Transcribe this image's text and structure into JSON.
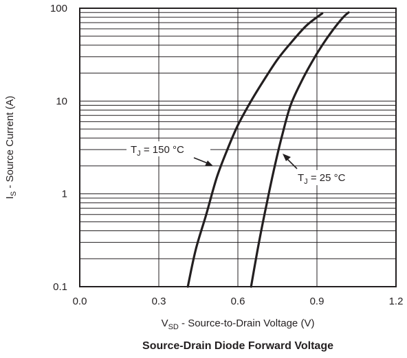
{
  "chart_data": {
    "type": "line",
    "title": "Source-Drain Diode Forward Voltage",
    "xlabel": {
      "main": "V",
      "sub": "SD",
      "rest": " - Source-to-Drain Voltage (V)"
    },
    "ylabel": {
      "main": "I",
      "sub": "S",
      "rest": " - Source Current (A)"
    },
    "xlim": [
      0.0,
      1.2
    ],
    "ylim": [
      0.1,
      100
    ],
    "yscale": "log",
    "grid": true,
    "x_ticks": [
      "0.0",
      "0.3",
      "0.6",
      "0.9",
      "1.2"
    ],
    "y_ticks": [
      "0.1",
      "1",
      "10",
      "100"
    ],
    "series": [
      {
        "name": {
          "main": "T",
          "sub": "J",
          "rest": " = 150 °C"
        },
        "x": [
          0.41,
          0.44,
          0.48,
          0.52,
          0.56,
          0.6,
          0.65,
          0.7,
          0.75,
          0.8,
          0.86,
          0.92
        ],
        "y": [
          0.1,
          0.25,
          0.6,
          1.5,
          3.0,
          5.5,
          10,
          17,
          28,
          42,
          65,
          88
        ]
      },
      {
        "name": {
          "main": "T",
          "sub": "J",
          "rest": " = 25 °C"
        },
        "x": [
          0.65,
          0.68,
          0.71,
          0.74,
          0.77,
          0.8,
          0.84,
          0.88,
          0.92,
          0.96,
          1.0,
          1.02
        ],
        "y": [
          0.1,
          0.3,
          0.8,
          2.0,
          4.5,
          9.0,
          16,
          26,
          40,
          58,
          80,
          90
        ]
      }
    ]
  }
}
